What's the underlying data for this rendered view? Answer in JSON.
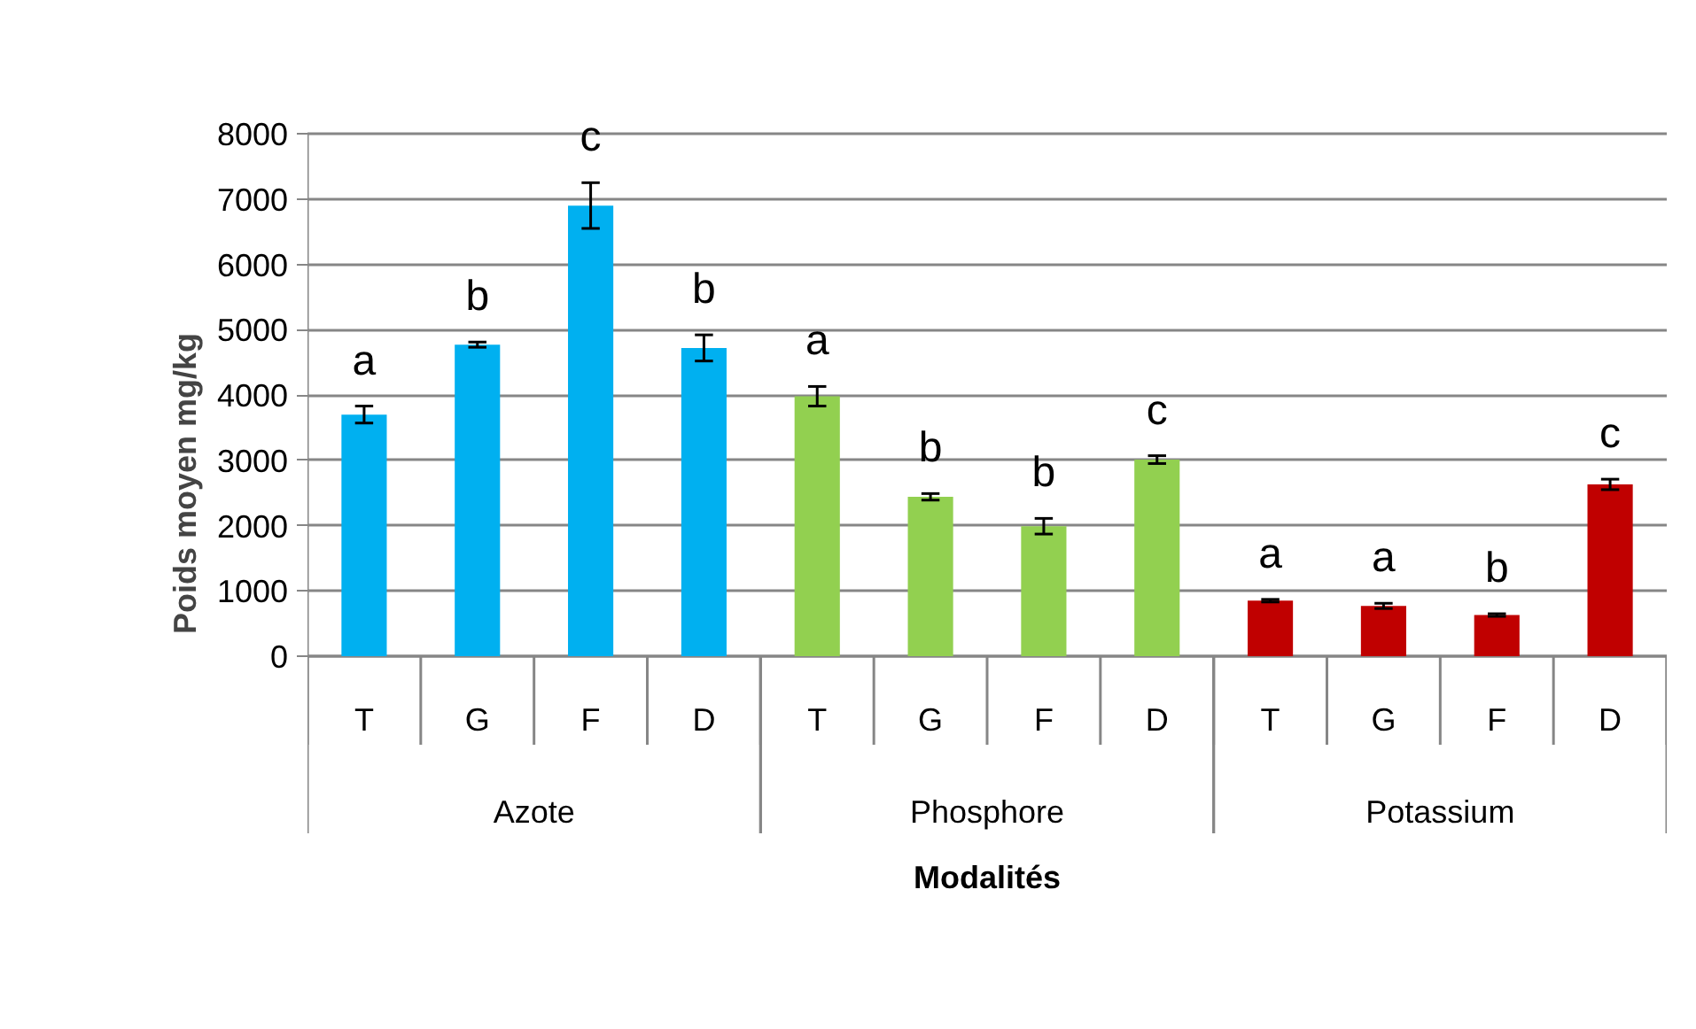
{
  "chart_data": {
    "type": "bar",
    "xlabel": "Modalités",
    "ylabel": "Poids moyen mg/kg",
    "categories": [
      "T",
      "G",
      "F",
      "D",
      "T",
      "G",
      "F",
      "D",
      "T",
      "G",
      "F",
      "D"
    ],
    "series": [
      {
        "color": "#00b0f0",
        "values": [
          3700,
          4770,
          6900,
          4720,
          null,
          null,
          null,
          null,
          null,
          null,
          null,
          null
        ],
        "errors": [
          130,
          40,
          350,
          200,
          null,
          null,
          null,
          null,
          null,
          null,
          null,
          null
        ],
        "value_labels": [
          "a",
          "b",
          "c",
          "b",
          null,
          null,
          null,
          null,
          null,
          null,
          null,
          null
        ]
      },
      {
        "color": "#92d050",
        "values": [
          null,
          null,
          null,
          null,
          3980,
          2440,
          1990,
          3010,
          null,
          null,
          null,
          null
        ],
        "errors": [
          null,
          null,
          null,
          null,
          150,
          50,
          120,
          60,
          null,
          null,
          null,
          null
        ],
        "value_labels": [
          null,
          null,
          null,
          null,
          "a",
          "b",
          "b",
          "c",
          null,
          null,
          null,
          null
        ]
      },
      {
        "color": "#c00000",
        "values": [
          null,
          null,
          null,
          null,
          null,
          null,
          null,
          null,
          850,
          770,
          630,
          2630
        ],
        "errors": [
          null,
          null,
          null,
          null,
          null,
          null,
          null,
          null,
          20,
          40,
          20,
          80
        ],
        "value_labels": [
          null,
          null,
          null,
          null,
          null,
          null,
          null,
          null,
          "a",
          "a",
          "b",
          "c"
        ]
      }
    ],
    "ylim": [
      0,
      8000
    ],
    "yticks": [
      0,
      1000,
      2000,
      3000,
      4000,
      5000,
      6000,
      7000,
      8000
    ],
    "grid": "y",
    "annotations": [
      "Azote",
      "Phosphore",
      "Potassium"
    ]
  }
}
